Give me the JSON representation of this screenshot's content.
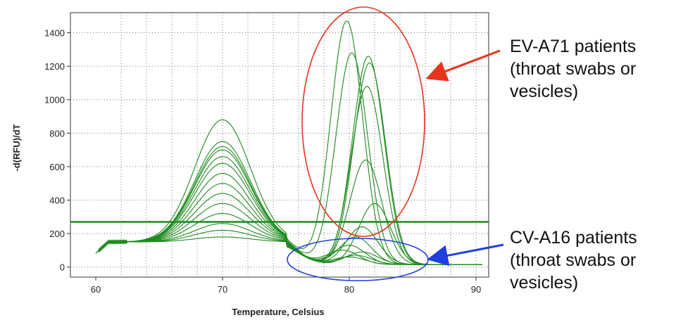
{
  "chart_data": {
    "type": "line",
    "title": "",
    "xlabel": "Temperature, Celsius",
    "ylabel": "-d(RFU)/dT",
    "xlim": [
      58,
      91
    ],
    "ylim": [
      -60,
      1520
    ],
    "xticks": [
      60,
      70,
      80,
      90
    ],
    "yticks": [
      0,
      200,
      400,
      600,
      800,
      1000,
      1200,
      1400
    ],
    "grid": true,
    "threshold": 270,
    "series_color": "#1e8a1e",
    "series": [
      {
        "baseline": 150,
        "p1": 880,
        "p2x": 79.8,
        "p2": 1470
      },
      {
        "baseline": 150,
        "p1": 750,
        "p2x": 80.2,
        "p2": 1280
      },
      {
        "baseline": 150,
        "p1": 720,
        "p2x": 81.5,
        "p2": 1260
      },
      {
        "baseline": 150,
        "p1": 700,
        "p2x": 81.6,
        "p2": 1220
      },
      {
        "baseline": 150,
        "p1": 660,
        "p2x": 81.4,
        "p2": 1080
      },
      {
        "baseline": 150,
        "p1": 620,
        "p2x": 81.3,
        "p2": 640
      },
      {
        "baseline": 150,
        "p1": 560,
        "p2x": 82.0,
        "p2": 380
      },
      {
        "baseline": 150,
        "p1": 500,
        "p2x": 81.0,
        "p2": 240
      },
      {
        "baseline": 150,
        "p1": 440,
        "p2x": 80.5,
        "p2": 180
      },
      {
        "baseline": 150,
        "p1": 380,
        "p2x": 80.0,
        "p2": 130
      },
      {
        "baseline": 150,
        "p1": 320,
        "p2x": 79.5,
        "p2": 100
      },
      {
        "baseline": 150,
        "p1": 260,
        "p2x": 81.0,
        "p2": 90
      },
      {
        "baseline": 150,
        "p1": 220,
        "p2x": 80.5,
        "p2": 70
      },
      {
        "baseline": 150,
        "p1": 180,
        "p2x": 80.0,
        "p2": 60
      }
    ],
    "annotations": [
      {
        "id": "ev",
        "lines": [
          "EV-A71 patients",
          "(throat swabs or",
          "vesicles)"
        ],
        "color": "#e8341c"
      },
      {
        "id": "cv",
        "lines": [
          "CV-A16 patients",
          "(throat swabs or",
          "vesicles)"
        ],
        "color": "#1f3fe0"
      }
    ]
  }
}
